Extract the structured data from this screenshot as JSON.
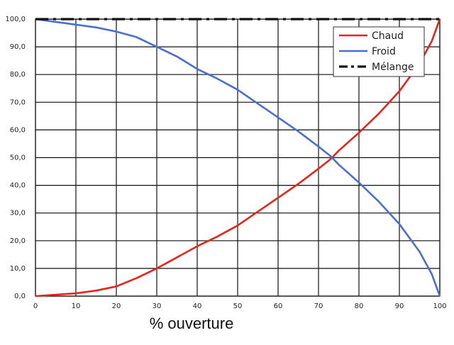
{
  "chart_data": {
    "type": "line",
    "xlabel": "% ouverture",
    "ylabel": "",
    "xlim": [
      0,
      100
    ],
    "ylim": [
      0,
      100
    ],
    "grid": true,
    "legend_position": "top-right",
    "x_ticks": [
      "0",
      "10",
      "20",
      "30",
      "40",
      "50",
      "60",
      "70",
      "80",
      "90",
      "100"
    ],
    "y_ticks": [
      "0,0",
      "10,0",
      "20,0",
      "30,0",
      "40,0",
      "50,0",
      "60,0",
      "70,0",
      "80,0",
      "90,0",
      "100,0"
    ],
    "series": [
      {
        "name": "Chaud",
        "color": "#e8231b",
        "dash": "solid",
        "x": [
          0,
          5,
          10,
          15,
          20,
          25,
          30,
          35,
          40,
          45,
          50,
          55,
          60,
          65,
          70,
          73,
          75,
          80,
          85,
          90,
          95,
          98,
          100
        ],
        "y": [
          0,
          0.5,
          1,
          2,
          3.5,
          6.5,
          10,
          14,
          18,
          21.5,
          25.5,
          30.5,
          35.5,
          40.5,
          46,
          49.5,
          52.5,
          59,
          66,
          74,
          84,
          92,
          100
        ]
      },
      {
        "name": "Froid",
        "color": "#4a6fd0",
        "dash": "solid",
        "x": [
          0,
          5,
          10,
          15,
          20,
          25,
          30,
          35,
          40,
          45,
          50,
          55,
          60,
          65,
          70,
          73,
          75,
          80,
          85,
          90,
          95,
          98,
          100
        ],
        "y": [
          100,
          99,
          98,
          97,
          95.5,
          93.5,
          90,
          86.5,
          82,
          78.5,
          74.5,
          69.5,
          64.5,
          59.5,
          54,
          50.5,
          47.5,
          41,
          34,
          26,
          16,
          8,
          0
        ]
      },
      {
        "name": "Mélange",
        "color": "#111111",
        "dash": "dashdot",
        "x": [
          0,
          100
        ],
        "y": [
          100,
          100
        ]
      }
    ]
  }
}
